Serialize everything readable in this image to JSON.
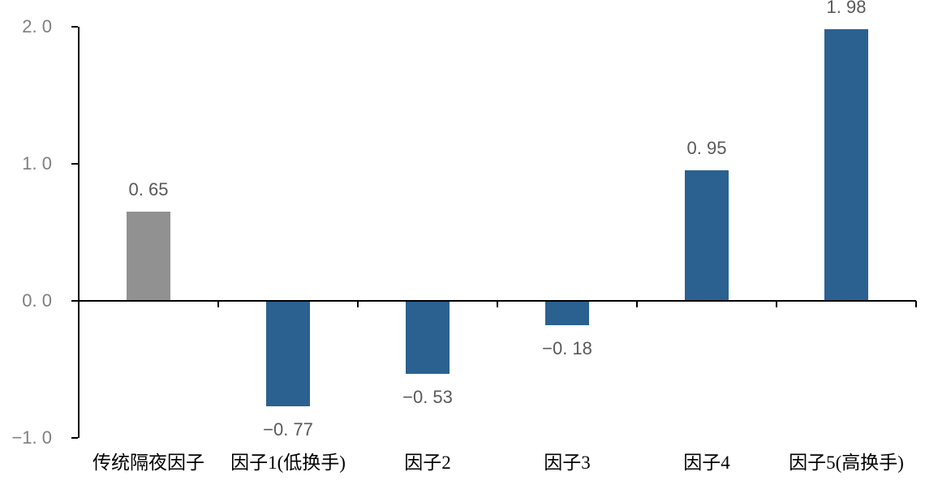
{
  "page": {
    "background": "#FFFFFF"
  },
  "chart_data": {
    "type": "bar",
    "title": "",
    "xlabel": "",
    "ylabel": "",
    "grid": false,
    "legend": "none",
    "categories": [
      "传统隔夜因子",
      "因子1(低换手)",
      "因子2",
      "因子3",
      "因子4",
      "因子5(高换手)"
    ],
    "values": [
      0.65,
      -0.77,
      -0.53,
      -0.18,
      0.95,
      1.98
    ],
    "value_labels": [
      "0. 65",
      "−0. 77",
      "−0. 53",
      "−0. 18",
      "0. 95",
      "1. 98"
    ],
    "bar_colors": [
      "#919191",
      "#2A6191",
      "#2A6191",
      "#2A6191",
      "#2A6191",
      "#2A6191"
    ],
    "yticks": [
      {
        "value": 2.0,
        "label": "2. 0"
      },
      {
        "value": 1.0,
        "label": "1. 0"
      },
      {
        "value": 0.0,
        "label": "0. 0"
      },
      {
        "value": -1.0,
        "label": "−1. 0"
      }
    ],
    "ylim": [
      -1.0,
      2.0
    ],
    "colors": {
      "bar_blue": "#2A6191",
      "bar_gray": "#919191",
      "axis": "#000000",
      "tick_label": "#7F7F7F",
      "value_label": "#595959",
      "category_label": "#000000"
    }
  }
}
